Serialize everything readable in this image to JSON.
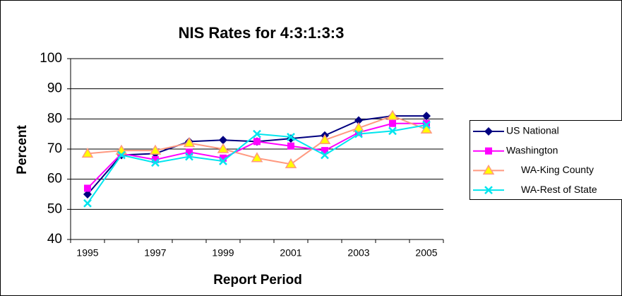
{
  "chart_data": {
    "type": "line",
    "title": "NIS Rates for 4:3:1:3:3",
    "x_label": "Report Period",
    "y_label": "Percent",
    "categories": [
      "1995",
      null,
      "1997",
      null,
      "1999",
      null,
      "2001",
      null,
      "2003",
      null,
      "2005"
    ],
    "ylim": [
      40,
      100
    ],
    "yticks": [
      40,
      50,
      60,
      70,
      80,
      90,
      100
    ],
    "grid": true,
    "legend": "right",
    "series": [
      {
        "name": "US National",
        "color": "#000080",
        "marker": "diamond",
        "values": [
          55,
          68,
          68.5,
          72.5,
          73,
          72.5,
          73.5,
          74.5,
          79.5,
          81,
          81
        ]
      },
      {
        "name": "Washington",
        "color": "#ff00ff",
        "marker": "square",
        "values": [
          57,
          68.5,
          66.5,
          69,
          67,
          72.5,
          71,
          69.5,
          75.5,
          78.5,
          78.5
        ]
      },
      {
        "name": "WA-King County",
        "color": "#ff9980",
        "marker": "triangle",
        "values": [
          68.5,
          69.5,
          69.5,
          72,
          70,
          67,
          65,
          73,
          77,
          81,
          76.5
        ]
      },
      {
        "name": "WA-Rest of State",
        "color": "#00e5ee",
        "marker": "x",
        "values": [
          52,
          68,
          65.5,
          67.5,
          66,
          75,
          74,
          68,
          75,
          76,
          78
        ]
      }
    ]
  }
}
